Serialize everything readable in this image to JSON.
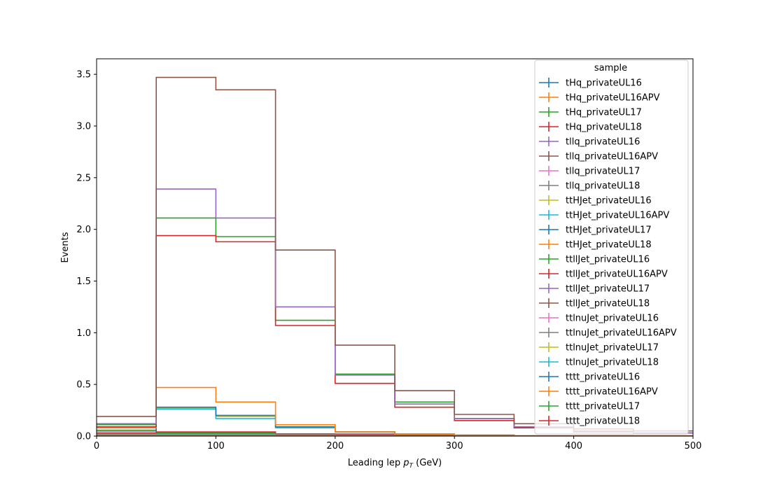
{
  "chart_data": {
    "type": "step-histogram",
    "xlabel": "Leading lep p_T (GeV)",
    "xlabel_parts": {
      "prefix": "Leading lep ",
      "symbol": "p",
      "sub": "T",
      "suffix": " (GeV)"
    },
    "ylabel": "Events",
    "xlim": [
      0,
      500
    ],
    "ylim": [
      0,
      3.65
    ],
    "xticks": [
      0,
      100,
      200,
      300,
      400,
      500
    ],
    "xtick_labels": [
      "0",
      "100",
      "200",
      "300",
      "400",
      "500"
    ],
    "yticks": [
      0.0,
      0.5,
      1.0,
      1.5,
      2.0,
      2.5,
      3.0,
      3.5
    ],
    "ytick_labels": [
      "0.0",
      "0.5",
      "1.0",
      "1.5",
      "2.0",
      "2.5",
      "3.0",
      "3.5"
    ],
    "grid": false,
    "legend": {
      "title": "sample",
      "position": "top-right"
    },
    "bin_edges": [
      0,
      50,
      100,
      150,
      200,
      250,
      300,
      350,
      400,
      450,
      500
    ],
    "series": [
      {
        "name": "tHq_privateUL16",
        "color": "#1f77b4",
        "values": [
          0.02,
          0.03,
          0.03,
          0.02,
          0.01,
          0.01,
          0.005,
          0.003,
          0.002,
          0.001
        ]
      },
      {
        "name": "tHq_privateUL16APV",
        "color": "#ff7f0e",
        "values": [
          0.02,
          0.03,
          0.03,
          0.02,
          0.01,
          0.01,
          0.005,
          0.003,
          0.002,
          0.001
        ]
      },
      {
        "name": "tHq_privateUL17",
        "color": "#2ca02c",
        "values": [
          0.03,
          0.03,
          0.03,
          0.02,
          0.01,
          0.01,
          0.005,
          0.003,
          0.002,
          0.001
        ]
      },
      {
        "name": "tHq_privateUL18",
        "color": "#d62728",
        "values": [
          0.03,
          0.04,
          0.04,
          0.02,
          0.02,
          0.01,
          0.005,
          0.003,
          0.002,
          0.001
        ]
      },
      {
        "name": "tllq_privateUL16",
        "color": "#9467bd",
        "values": [
          0.02,
          0.02,
          0.02,
          0.01,
          0.01,
          0.005,
          0.003,
          0.002,
          0.001,
          0.001
        ]
      },
      {
        "name": "tllq_privateUL16APV",
        "color": "#8c564b",
        "values": [
          0.02,
          0.02,
          0.02,
          0.01,
          0.01,
          0.005,
          0.003,
          0.002,
          0.001,
          0.001
        ]
      },
      {
        "name": "tllq_privateUL17",
        "color": "#e377c2",
        "values": [
          0.02,
          0.02,
          0.02,
          0.01,
          0.01,
          0.005,
          0.003,
          0.002,
          0.001,
          0.001
        ]
      },
      {
        "name": "tllq_privateUL18",
        "color": "#7f7f7f",
        "values": [
          0.02,
          0.02,
          0.02,
          0.01,
          0.01,
          0.005,
          0.003,
          0.002,
          0.001,
          0.001
        ]
      },
      {
        "name": "ttHJet_privateUL16",
        "color": "#bcbd22",
        "values": [
          0.06,
          0.27,
          0.19,
          0.09,
          0.04,
          0.02,
          0.01,
          0.005,
          0.003,
          0.002
        ]
      },
      {
        "name": "ttHJet_privateUL16APV",
        "color": "#17becf",
        "values": [
          0.05,
          0.26,
          0.17,
          0.08,
          0.04,
          0.02,
          0.01,
          0.005,
          0.003,
          0.002
        ]
      },
      {
        "name": "ttHJet_privateUL17",
        "color": "#1f77b4",
        "values": [
          0.05,
          0.28,
          0.2,
          0.09,
          0.04,
          0.02,
          0.01,
          0.005,
          0.003,
          0.002
        ]
      },
      {
        "name": "ttHJet_privateUL18",
        "color": "#ff7f0e",
        "values": [
          0.08,
          0.47,
          0.33,
          0.11,
          0.04,
          0.02,
          0.01,
          0.005,
          0.003,
          0.002
        ]
      },
      {
        "name": "ttllJet_privateUL16",
        "color": "#2ca02c",
        "values": [
          0.11,
          2.11,
          1.93,
          1.12,
          0.6,
          0.33,
          0.17,
          0.08,
          0.05,
          0.03
        ]
      },
      {
        "name": "ttllJet_privateUL16APV",
        "color": "#d62728",
        "values": [
          0.09,
          1.94,
          1.88,
          1.07,
          0.51,
          0.28,
          0.15,
          0.08,
          0.04,
          0.03
        ]
      },
      {
        "name": "ttllJet_privateUL17",
        "color": "#9467bd",
        "values": [
          0.12,
          2.39,
          2.11,
          1.25,
          0.59,
          0.31,
          0.17,
          0.09,
          0.05,
          0.03
        ]
      },
      {
        "name": "ttllJet_privateUL18",
        "color": "#8c564b",
        "values": [
          0.19,
          3.47,
          3.35,
          1.8,
          0.88,
          0.44,
          0.21,
          0.12,
          0.07,
          0.05
        ]
      },
      {
        "name": "ttlnuJet_privateUL16",
        "color": "#e377c2",
        "values": [
          0.01,
          0.01,
          0.01,
          0.01,
          0.005,
          0.003,
          0.002,
          0.001,
          0.001,
          0.0
        ]
      },
      {
        "name": "ttlnuJet_privateUL16APV",
        "color": "#7f7f7f",
        "values": [
          0.01,
          0.01,
          0.01,
          0.01,
          0.005,
          0.003,
          0.002,
          0.001,
          0.001,
          0.0
        ]
      },
      {
        "name": "ttlnuJet_privateUL17",
        "color": "#bcbd22",
        "values": [
          0.01,
          0.01,
          0.01,
          0.01,
          0.005,
          0.003,
          0.002,
          0.001,
          0.001,
          0.0
        ]
      },
      {
        "name": "ttlnuJet_privateUL18",
        "color": "#17becf",
        "values": [
          0.01,
          0.01,
          0.01,
          0.01,
          0.005,
          0.003,
          0.002,
          0.001,
          0.001,
          0.0
        ]
      },
      {
        "name": "tttt_privateUL16",
        "color": "#1f77b4",
        "values": [
          0.0,
          0.0,
          0.0,
          0.0,
          0.0,
          0.0,
          0.0,
          0.0,
          0.0,
          0.0
        ]
      },
      {
        "name": "tttt_privateUL16APV",
        "color": "#ff7f0e",
        "values": [
          0.0,
          0.0,
          0.0,
          0.0,
          0.0,
          0.0,
          0.0,
          0.0,
          0.0,
          0.0
        ]
      },
      {
        "name": "tttt_privateUL17",
        "color": "#2ca02c",
        "values": [
          0.0,
          0.0,
          0.0,
          0.0,
          0.0,
          0.0,
          0.0,
          0.0,
          0.0,
          0.0
        ]
      },
      {
        "name": "tttt_privateUL18",
        "color": "#d62728",
        "values": [
          0.0,
          0.0,
          0.0,
          0.0,
          0.0,
          0.0,
          0.0,
          0.0,
          0.0,
          0.0
        ]
      }
    ]
  }
}
